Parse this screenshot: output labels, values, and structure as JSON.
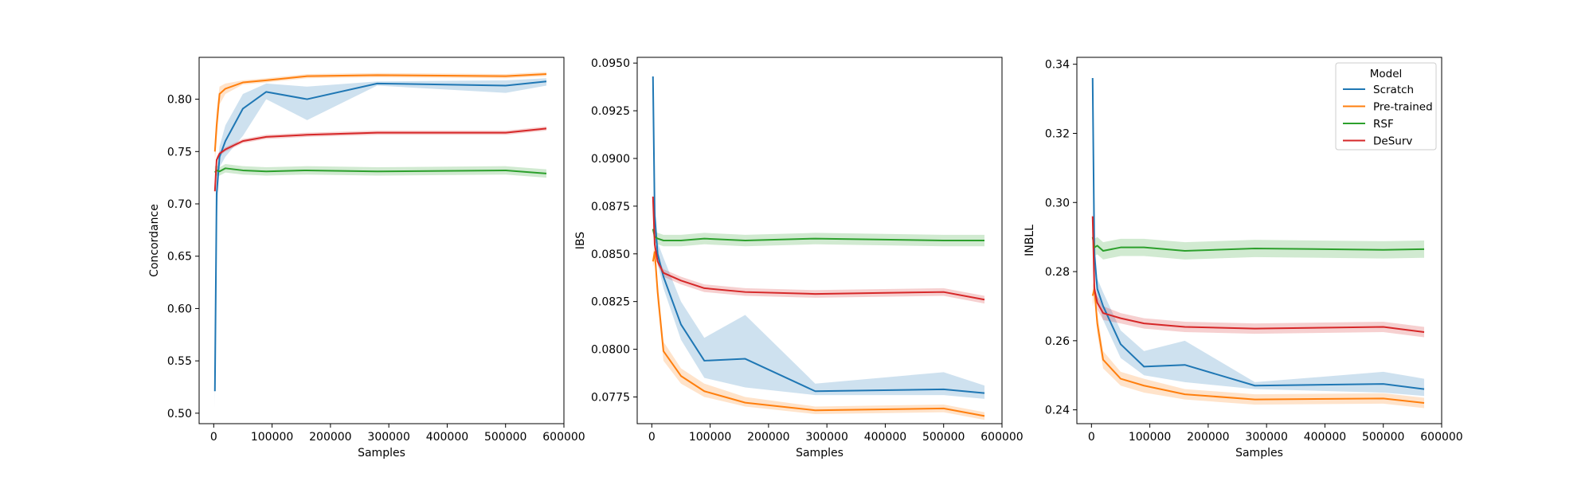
{
  "figure": {
    "legend_title": "Model"
  },
  "series_colors": {
    "Scratch": "#1f77b4",
    "Pre-trained": "#ff7f0e",
    "RSF": "#2ca02c",
    "DeSurv": "#d62728"
  },
  "chart_data": [
    {
      "type": "line",
      "title": "",
      "xlabel": "Samples",
      "ylabel": "Concordance",
      "xlim": [
        -25000,
        600000
      ],
      "ylim": [
        0.49,
        0.84
      ],
      "xticks": [
        0,
        100000,
        200000,
        300000,
        400000,
        500000,
        600000
      ],
      "yticks": [
        0.5,
        0.55,
        0.6,
        0.65,
        0.7,
        0.75,
        0.8
      ],
      "ytick_labels": [
        "0.50",
        "0.55",
        "0.60",
        "0.65",
        "0.70",
        "0.75",
        "0.80"
      ],
      "grid": false,
      "series": [
        {
          "name": "Scratch",
          "x": [
            2000,
            5000,
            10000,
            20000,
            50000,
            90000,
            160000,
            280000,
            500000,
            570000
          ],
          "y": [
            0.521,
            0.71,
            0.745,
            0.76,
            0.791,
            0.807,
            0.8,
            0.815,
            0.813,
            0.817
          ],
          "lower": [
            0.505,
            0.68,
            0.735,
            0.745,
            0.765,
            0.8,
            0.78,
            0.813,
            0.806,
            0.813
          ],
          "upper": [
            0.535,
            0.73,
            0.755,
            0.775,
            0.805,
            0.815,
            0.812,
            0.817,
            0.818,
            0.82
          ]
        },
        {
          "name": "Pre-trained",
          "x": [
            2000,
            5000,
            10000,
            20000,
            50000,
            90000,
            160000,
            280000,
            500000,
            570000
          ],
          "y": [
            0.75,
            0.775,
            0.805,
            0.81,
            0.816,
            0.818,
            0.822,
            0.823,
            0.822,
            0.824
          ],
          "lower": [
            0.74,
            0.76,
            0.795,
            0.805,
            0.814,
            0.816,
            0.82,
            0.821,
            0.82,
            0.822
          ],
          "upper": [
            0.76,
            0.79,
            0.812,
            0.815,
            0.818,
            0.82,
            0.824,
            0.825,
            0.824,
            0.826
          ]
        },
        {
          "name": "RSF",
          "x": [
            2000,
            5000,
            10000,
            20000,
            50000,
            90000,
            160000,
            280000,
            500000,
            570000
          ],
          "y": [
            0.73,
            0.732,
            0.731,
            0.734,
            0.732,
            0.731,
            0.732,
            0.731,
            0.732,
            0.729
          ],
          "lower": [
            0.724,
            0.727,
            0.727,
            0.73,
            0.728,
            0.727,
            0.728,
            0.727,
            0.728,
            0.725
          ],
          "upper": [
            0.736,
            0.737,
            0.735,
            0.738,
            0.736,
            0.735,
            0.736,
            0.735,
            0.736,
            0.733
          ]
        },
        {
          "name": "DeSurv",
          "x": [
            2000,
            5000,
            10000,
            20000,
            50000,
            90000,
            160000,
            280000,
            500000,
            570000
          ],
          "y": [
            0.712,
            0.742,
            0.748,
            0.752,
            0.76,
            0.764,
            0.766,
            0.768,
            0.768,
            0.772
          ],
          "lower": [
            0.708,
            0.739,
            0.746,
            0.75,
            0.758,
            0.762,
            0.764,
            0.766,
            0.766,
            0.77
          ],
          "upper": [
            0.716,
            0.745,
            0.75,
            0.754,
            0.762,
            0.766,
            0.768,
            0.77,
            0.77,
            0.774
          ]
        }
      ]
    },
    {
      "type": "line",
      "title": "",
      "xlabel": "Samples",
      "ylabel": "IBS",
      "xlim": [
        -25000,
        600000
      ],
      "ylim": [
        0.0761,
        0.0953
      ],
      "xticks": [
        0,
        100000,
        200000,
        300000,
        400000,
        500000,
        600000
      ],
      "yticks": [
        0.0775,
        0.08,
        0.0825,
        0.085,
        0.0875,
        0.09,
        0.0925,
        0.095
      ],
      "ytick_labels": [
        "0.0775",
        "0.0800",
        "0.0825",
        "0.0850",
        "0.0875",
        "0.0900",
        "0.0925",
        "0.0950"
      ],
      "grid": false,
      "series": [
        {
          "name": "Scratch",
          "x": [
            2000,
            5000,
            10000,
            20000,
            50000,
            90000,
            160000,
            280000,
            500000,
            570000
          ],
          "y": [
            0.0943,
            0.087,
            0.085,
            0.0838,
            0.0813,
            0.0794,
            0.0795,
            0.0778,
            0.0779,
            0.0777
          ],
          "lower": [
            0.094,
            0.086,
            0.0845,
            0.0832,
            0.0805,
            0.0785,
            0.078,
            0.0776,
            0.0776,
            0.0774
          ],
          "upper": [
            0.0946,
            0.088,
            0.0856,
            0.0848,
            0.0825,
            0.0806,
            0.0818,
            0.0782,
            0.0788,
            0.0781
          ]
        },
        {
          "name": "Pre-trained",
          "x": [
            2000,
            5000,
            10000,
            20000,
            50000,
            90000,
            160000,
            280000,
            500000,
            570000
          ],
          "y": [
            0.0846,
            0.0851,
            0.083,
            0.0799,
            0.0786,
            0.0778,
            0.0772,
            0.0768,
            0.0769,
            0.0765
          ],
          "lower": [
            0.0843,
            0.0846,
            0.0824,
            0.0794,
            0.0782,
            0.0775,
            0.077,
            0.0766,
            0.0767,
            0.0763
          ],
          "upper": [
            0.085,
            0.0856,
            0.0836,
            0.0804,
            0.079,
            0.0782,
            0.0775,
            0.077,
            0.0771,
            0.0767
          ]
        },
        {
          "name": "RSF",
          "x": [
            2000,
            5000,
            10000,
            20000,
            50000,
            90000,
            160000,
            280000,
            500000,
            570000
          ],
          "y": [
            0.0863,
            0.0859,
            0.0858,
            0.0857,
            0.0857,
            0.0858,
            0.0857,
            0.0858,
            0.0857,
            0.0857
          ],
          "lower": [
            0.086,
            0.0856,
            0.0855,
            0.0854,
            0.0854,
            0.0855,
            0.0854,
            0.0855,
            0.0854,
            0.0854
          ],
          "upper": [
            0.0866,
            0.0862,
            0.0861,
            0.086,
            0.086,
            0.0861,
            0.086,
            0.0861,
            0.086,
            0.086
          ]
        },
        {
          "name": "DeSurv",
          "x": [
            2000,
            5000,
            10000,
            20000,
            50000,
            90000,
            160000,
            280000,
            500000,
            570000
          ],
          "y": [
            0.088,
            0.0855,
            0.0846,
            0.084,
            0.0836,
            0.0832,
            0.083,
            0.0829,
            0.083,
            0.0826
          ],
          "lower": [
            0.0877,
            0.0853,
            0.0844,
            0.0838,
            0.0834,
            0.083,
            0.0828,
            0.0827,
            0.0828,
            0.0824
          ],
          "upper": [
            0.0883,
            0.0857,
            0.0848,
            0.0842,
            0.0838,
            0.0834,
            0.0832,
            0.0831,
            0.0832,
            0.0828
          ]
        }
      ]
    },
    {
      "type": "line",
      "title": "",
      "xlabel": "Samples",
      "ylabel": "INBLL",
      "xlim": [
        -25000,
        600000
      ],
      "ylim": [
        0.236,
        0.342
      ],
      "xticks": [
        0,
        100000,
        200000,
        300000,
        400000,
        500000,
        600000
      ],
      "yticks": [
        0.24,
        0.26,
        0.28,
        0.3,
        0.32,
        0.34
      ],
      "ytick_labels": [
        "0.24",
        "0.26",
        "0.28",
        "0.30",
        "0.32",
        "0.34"
      ],
      "grid": false,
      "legend": {
        "title": "Model",
        "placement": "top-right",
        "entries": [
          "Scratch",
          "Pre-trained",
          "RSF",
          "DeSurv"
        ]
      },
      "series": [
        {
          "name": "Scratch",
          "x": [
            2000,
            5000,
            10000,
            20000,
            50000,
            90000,
            160000,
            280000,
            500000,
            570000
          ],
          "y": [
            0.336,
            0.285,
            0.275,
            0.27,
            0.259,
            0.2525,
            0.253,
            0.247,
            0.2475,
            0.246
          ],
          "lower": [
            0.335,
            0.28,
            0.272,
            0.266,
            0.255,
            0.25,
            0.248,
            0.246,
            0.245,
            0.244
          ],
          "upper": [
            0.337,
            0.29,
            0.278,
            0.274,
            0.263,
            0.257,
            0.26,
            0.248,
            0.251,
            0.249
          ]
        },
        {
          "name": "Pre-trained",
          "x": [
            2000,
            5000,
            10000,
            20000,
            50000,
            90000,
            160000,
            280000,
            500000,
            570000
          ],
          "y": [
            0.273,
            0.275,
            0.265,
            0.2545,
            0.249,
            0.247,
            0.2445,
            0.243,
            0.2433,
            0.242
          ],
          "lower": [
            0.27,
            0.272,
            0.262,
            0.252,
            0.247,
            0.245,
            0.243,
            0.2415,
            0.2418,
            0.2405
          ],
          "upper": [
            0.276,
            0.278,
            0.268,
            0.257,
            0.251,
            0.249,
            0.246,
            0.2445,
            0.2448,
            0.2435
          ]
        },
        {
          "name": "RSF",
          "x": [
            2000,
            5000,
            10000,
            20000,
            50000,
            90000,
            160000,
            280000,
            500000,
            570000
          ],
          "y": [
            0.29,
            0.287,
            0.2875,
            0.286,
            0.287,
            0.287,
            0.286,
            0.2867,
            0.2863,
            0.2865
          ],
          "lower": [
            0.287,
            0.2845,
            0.285,
            0.2835,
            0.2845,
            0.2845,
            0.2835,
            0.2842,
            0.2838,
            0.284
          ],
          "upper": [
            0.293,
            0.2895,
            0.29,
            0.2885,
            0.2895,
            0.2895,
            0.2885,
            0.2892,
            0.2888,
            0.289
          ]
        },
        {
          "name": "DeSurv",
          "x": [
            2000,
            5000,
            10000,
            20000,
            50000,
            90000,
            160000,
            280000,
            500000,
            570000
          ],
          "y": [
            0.296,
            0.275,
            0.271,
            0.268,
            0.2665,
            0.265,
            0.264,
            0.2635,
            0.264,
            0.2625
          ],
          "lower": [
            0.294,
            0.273,
            0.269,
            0.266,
            0.265,
            0.2635,
            0.2625,
            0.262,
            0.2625,
            0.261
          ],
          "upper": [
            0.298,
            0.277,
            0.273,
            0.27,
            0.268,
            0.2665,
            0.2655,
            0.265,
            0.2655,
            0.264
          ]
        }
      ]
    }
  ]
}
